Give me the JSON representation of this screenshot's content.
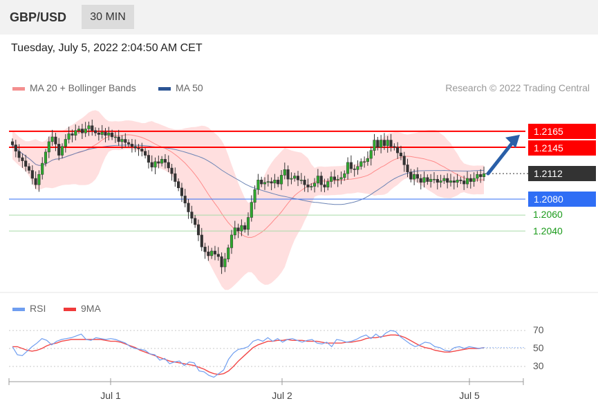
{
  "header": {
    "symbol": "GBP/USD",
    "timeframe": "30 MIN"
  },
  "timestamp": "Tuesday, July 5, 2022 2:04:50 AM CET",
  "legend": {
    "ma20_label": "MA 20 + Bollinger Bands",
    "ma50_label": "MA 50",
    "rsi_label": "RSI",
    "rsi_ma_label": "9MA"
  },
  "credit": "Research © 2022 Trading Central",
  "colors": {
    "resistance": "#ff0000",
    "support": "#2f6ef5",
    "target": "#1a9a1a",
    "current": "#333333",
    "arrow": "#2a5fa8",
    "bollinger": "#ffd9d9",
    "ma20": "#ff8a8a",
    "ma50": "#6b84b5",
    "rsi": "#6f9ef0",
    "rsi_ma": "#f24848"
  },
  "levels": {
    "resistance_1": "1.2165",
    "resistance_2": "1.2145",
    "current": "1.2112",
    "support_1": "1.2080",
    "target_1": "1.2060",
    "target_2": "1.2040"
  },
  "rsi_ticks": [
    "70",
    "50",
    "30"
  ],
  "x_labels": [
    "Jul 1",
    "Jul 2",
    "Jul 5"
  ],
  "chart_data": [
    {
      "type": "candlestick",
      "title": "GBP/USD 30 MIN",
      "ylim": [
        1.1985,
        1.2185
      ],
      "x_ticks": [
        "Jul 1",
        "Jul 2",
        "Jul 5"
      ],
      "close": [
        1.2148,
        1.214,
        1.2132,
        1.2128,
        1.2121,
        1.2116,
        1.2106,
        1.2098,
        1.2111,
        1.2125,
        1.2139,
        1.2152,
        1.2158,
        1.2149,
        1.2135,
        1.2146,
        1.2155,
        1.2162,
        1.216,
        1.2166,
        1.2168,
        1.2163,
        1.2168,
        1.2172,
        1.2166,
        1.2163,
        1.2161,
        1.2164,
        1.216,
        1.2163,
        1.2158,
        1.2158,
        1.2152,
        1.2155,
        1.2151,
        1.2149,
        1.2146,
        1.2144,
        1.2143,
        1.214,
        1.2135,
        1.2126,
        1.212,
        1.2127,
        1.2125,
        1.213,
        1.2126,
        1.2119,
        1.2112,
        1.2102,
        1.2094,
        1.2084,
        1.2075,
        1.2064,
        1.2056,
        1.2048,
        1.2035,
        1.202,
        1.2014,
        1.2009,
        1.2015,
        1.2011,
        1.2008,
        1.1995,
        1.2005,
        1.2019,
        1.2035,
        1.2044,
        1.204,
        1.2047,
        1.2042,
        1.2057,
        1.2076,
        1.2092,
        1.2104,
        1.2099,
        1.2101,
        1.2102,
        1.21,
        1.2104,
        1.2099,
        1.211,
        1.2117,
        1.2105,
        1.2106,
        1.2109,
        1.2104,
        1.2104,
        1.2098,
        1.2095,
        1.2096,
        1.21,
        1.2109,
        1.2098,
        1.2095,
        1.2102,
        1.2108,
        1.2104,
        1.2105,
        1.2107,
        1.2112,
        1.2126,
        1.2118,
        1.2117,
        1.2121,
        1.2127,
        1.2127,
        1.2131,
        1.2141,
        1.2154,
        1.2145,
        1.2154,
        1.2147,
        1.2154,
        1.2146,
        1.2145,
        1.2138,
        1.2134,
        1.2123,
        1.2114,
        1.2105,
        1.2111,
        1.2106,
        1.2101,
        1.2107,
        1.2102,
        1.2105,
        1.2105,
        1.2101,
        1.2103,
        1.2106,
        1.2101,
        1.2103,
        1.2101,
        1.2104,
        1.2103,
        1.2099,
        1.2106,
        1.2102,
        1.2106,
        1.2111,
        1.2108,
        1.2112
      ]
    },
    {
      "type": "line",
      "title": "RSI",
      "ylim": [
        20,
        80
      ],
      "series": [
        {
          "name": "RSI",
          "values": [
            52,
            43,
            42,
            47,
            52,
            56,
            61,
            59,
            54,
            58,
            60,
            61,
            62,
            64,
            66,
            60,
            59,
            62,
            61,
            60,
            61,
            60,
            58,
            56,
            52,
            50,
            49,
            48,
            44,
            43,
            37,
            39,
            33,
            35,
            36,
            31,
            35,
            34,
            25,
            24,
            20,
            18,
            22,
            26,
            38,
            45,
            49,
            50,
            52,
            58,
            60,
            58,
            62,
            58,
            61,
            57,
            60,
            61,
            59,
            57,
            59,
            60,
            56,
            55,
            57,
            52,
            60,
            59,
            57,
            58,
            60,
            63,
            65,
            61,
            66,
            62,
            67,
            70,
            69,
            63,
            59,
            55,
            52,
            54,
            57,
            56,
            52,
            51,
            48,
            47,
            51,
            52,
            50,
            52,
            51,
            50,
            51
          ]
        },
        {
          "name": "9MA",
          "values": [
            52,
            52,
            50,
            48,
            47,
            48,
            50,
            53,
            55,
            56,
            58,
            59,
            60,
            60,
            60,
            60,
            60,
            60,
            60,
            59,
            58,
            58,
            57,
            55,
            53,
            51,
            48,
            46,
            44,
            42,
            40,
            38,
            36,
            35,
            34,
            33,
            32,
            31,
            29,
            27,
            24,
            22,
            21,
            22,
            25,
            30,
            36,
            41,
            46,
            51,
            54,
            56,
            58,
            58,
            59,
            59,
            60,
            59,
            59,
            59,
            58,
            58,
            58,
            57,
            56,
            56,
            56,
            56,
            57,
            57,
            58,
            59,
            61,
            62,
            62,
            63,
            64,
            65,
            65,
            64,
            62,
            59,
            56,
            53,
            51,
            50,
            48,
            47,
            46,
            46,
            47,
            48,
            49,
            50,
            50,
            50,
            51
          ]
        }
      ]
    }
  ]
}
